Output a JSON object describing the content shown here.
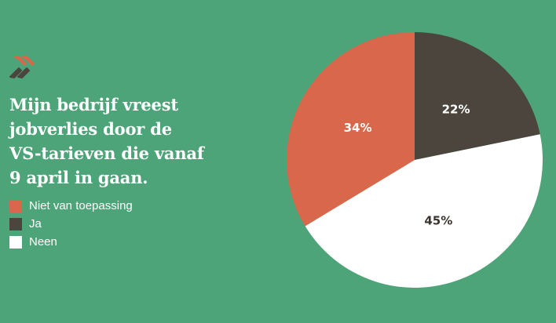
{
  "logo": {
    "icon": "double-chevron-icon",
    "colors": [
      "#d9674b",
      "#4b453d"
    ]
  },
  "chart_data": {
    "type": "pie",
    "title": "Mijn bedrijf vreest jobverlies door de VS-tarieven die vanaf 9 april in gaan.",
    "title_lines": [
      "Mijn bedrijf vreest",
      "jobverlies door de",
      "VS-tarieven die vanaf",
      "9 april in gaan."
    ],
    "start_angle_deg": 0,
    "direction": "clockwise",
    "slices": [
      {
        "name": "Ja",
        "value": 22,
        "label": "22%",
        "color": "#4b453d",
        "label_color": "#ffffff"
      },
      {
        "name": "Neen",
        "value": 45,
        "label": "45%",
        "color": "#ffffff",
        "label_color": "#3a342e"
      },
      {
        "name": "Niet van toepassing",
        "value": 34,
        "label": "34%",
        "color": "#d9674b",
        "label_color": "#ffffff"
      }
    ],
    "legend": [
      {
        "label": "Niet van toepassing",
        "color": "#d9674b"
      },
      {
        "label": "Ja",
        "color": "#4b453d"
      },
      {
        "label": "Neen",
        "color": "#ffffff"
      }
    ],
    "legend_position": "left"
  }
}
